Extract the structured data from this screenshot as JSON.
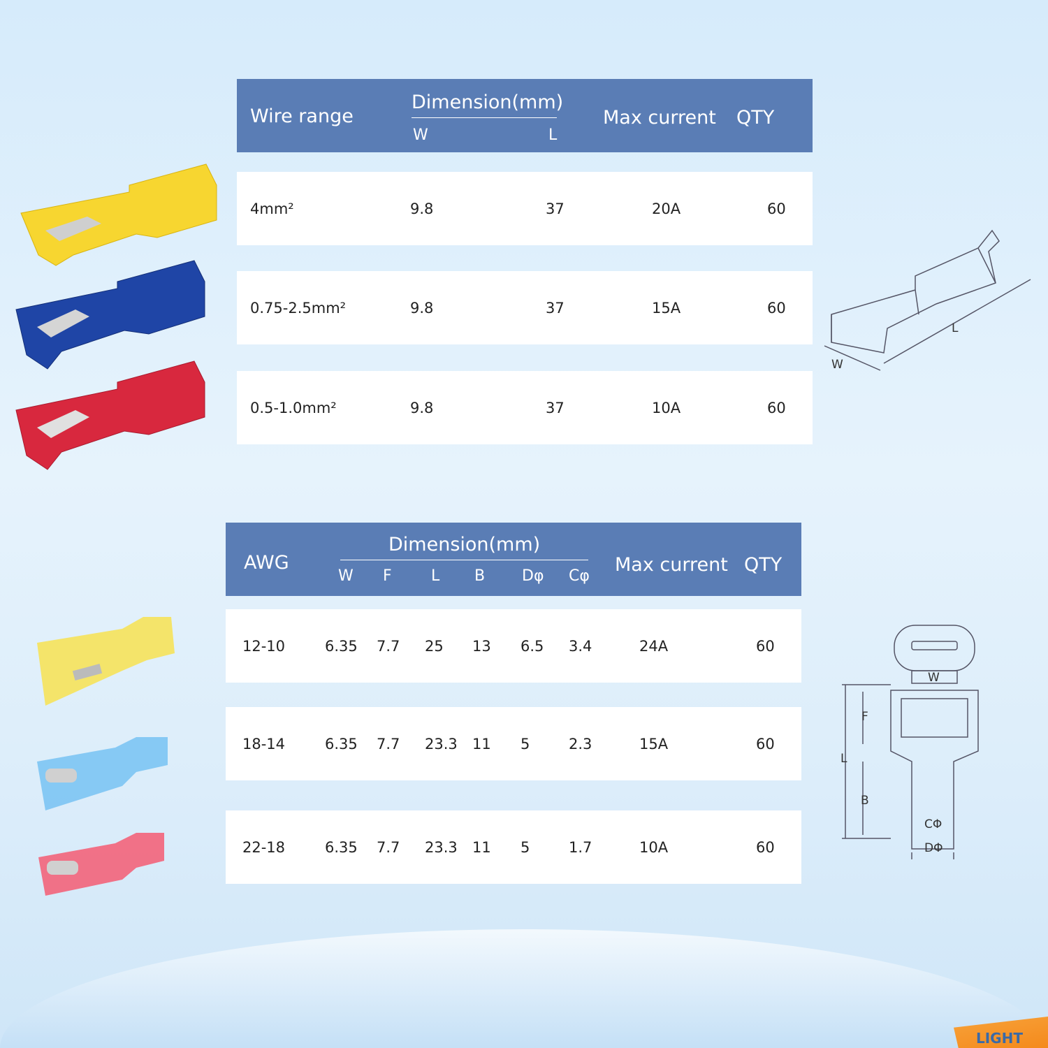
{
  "table1": {
    "headers": {
      "wire_range": "Wire range",
      "dimension": "Dimension(mm)",
      "w": "W",
      "l": "L",
      "max_current": "Max current",
      "qty": "QTY"
    },
    "rows": [
      {
        "wire": "4mm²",
        "w": "9.8",
        "l": "37",
        "current": "20A",
        "qty": "60"
      },
      {
        "wire": "0.75-2.5mm²",
        "w": "9.8",
        "l": "37",
        "current": "15A",
        "qty": "60"
      },
      {
        "wire": "0.5-1.0mm²",
        "w": "9.8",
        "l": "37",
        "current": "10A",
        "qty": "60"
      }
    ]
  },
  "table2": {
    "headers": {
      "awg": "AWG",
      "dimension": "Dimension(mm)",
      "w": "W",
      "f": "F",
      "l": "L",
      "b": "B",
      "d": "Dφ",
      "c": "Cφ",
      "max_current": "Max current",
      "qty": "QTY"
    },
    "rows": [
      {
        "awg": "12-10",
        "w": "6.35",
        "f": "7.7",
        "l": "25",
        "b": "13",
        "d": "6.5",
        "c": "3.4",
        "current": "24A",
        "qty": "60"
      },
      {
        "awg": "18-14",
        "w": "6.35",
        "f": "7.7",
        "l": "23.3",
        "b": "11",
        "d": "5",
        "c": "2.3",
        "current": "15A",
        "qty": "60"
      },
      {
        "awg": "22-18",
        "w": "6.35",
        "f": "7.7",
        "l": "23.3",
        "b": "11",
        "d": "5",
        "c": "1.7",
        "current": "10A",
        "qty": "60"
      }
    ]
  },
  "diagram1": {
    "w": "W",
    "l": "L"
  },
  "diagram2": {
    "w": "W",
    "f": "F",
    "l": "L",
    "b": "B",
    "c": "CΦ",
    "d": "DΦ"
  },
  "logo": "LIGHT",
  "colors": {
    "header": "#5a7db5",
    "yellow": "#f7d630",
    "blue": "#1f45a6",
    "red": "#d8283e"
  }
}
